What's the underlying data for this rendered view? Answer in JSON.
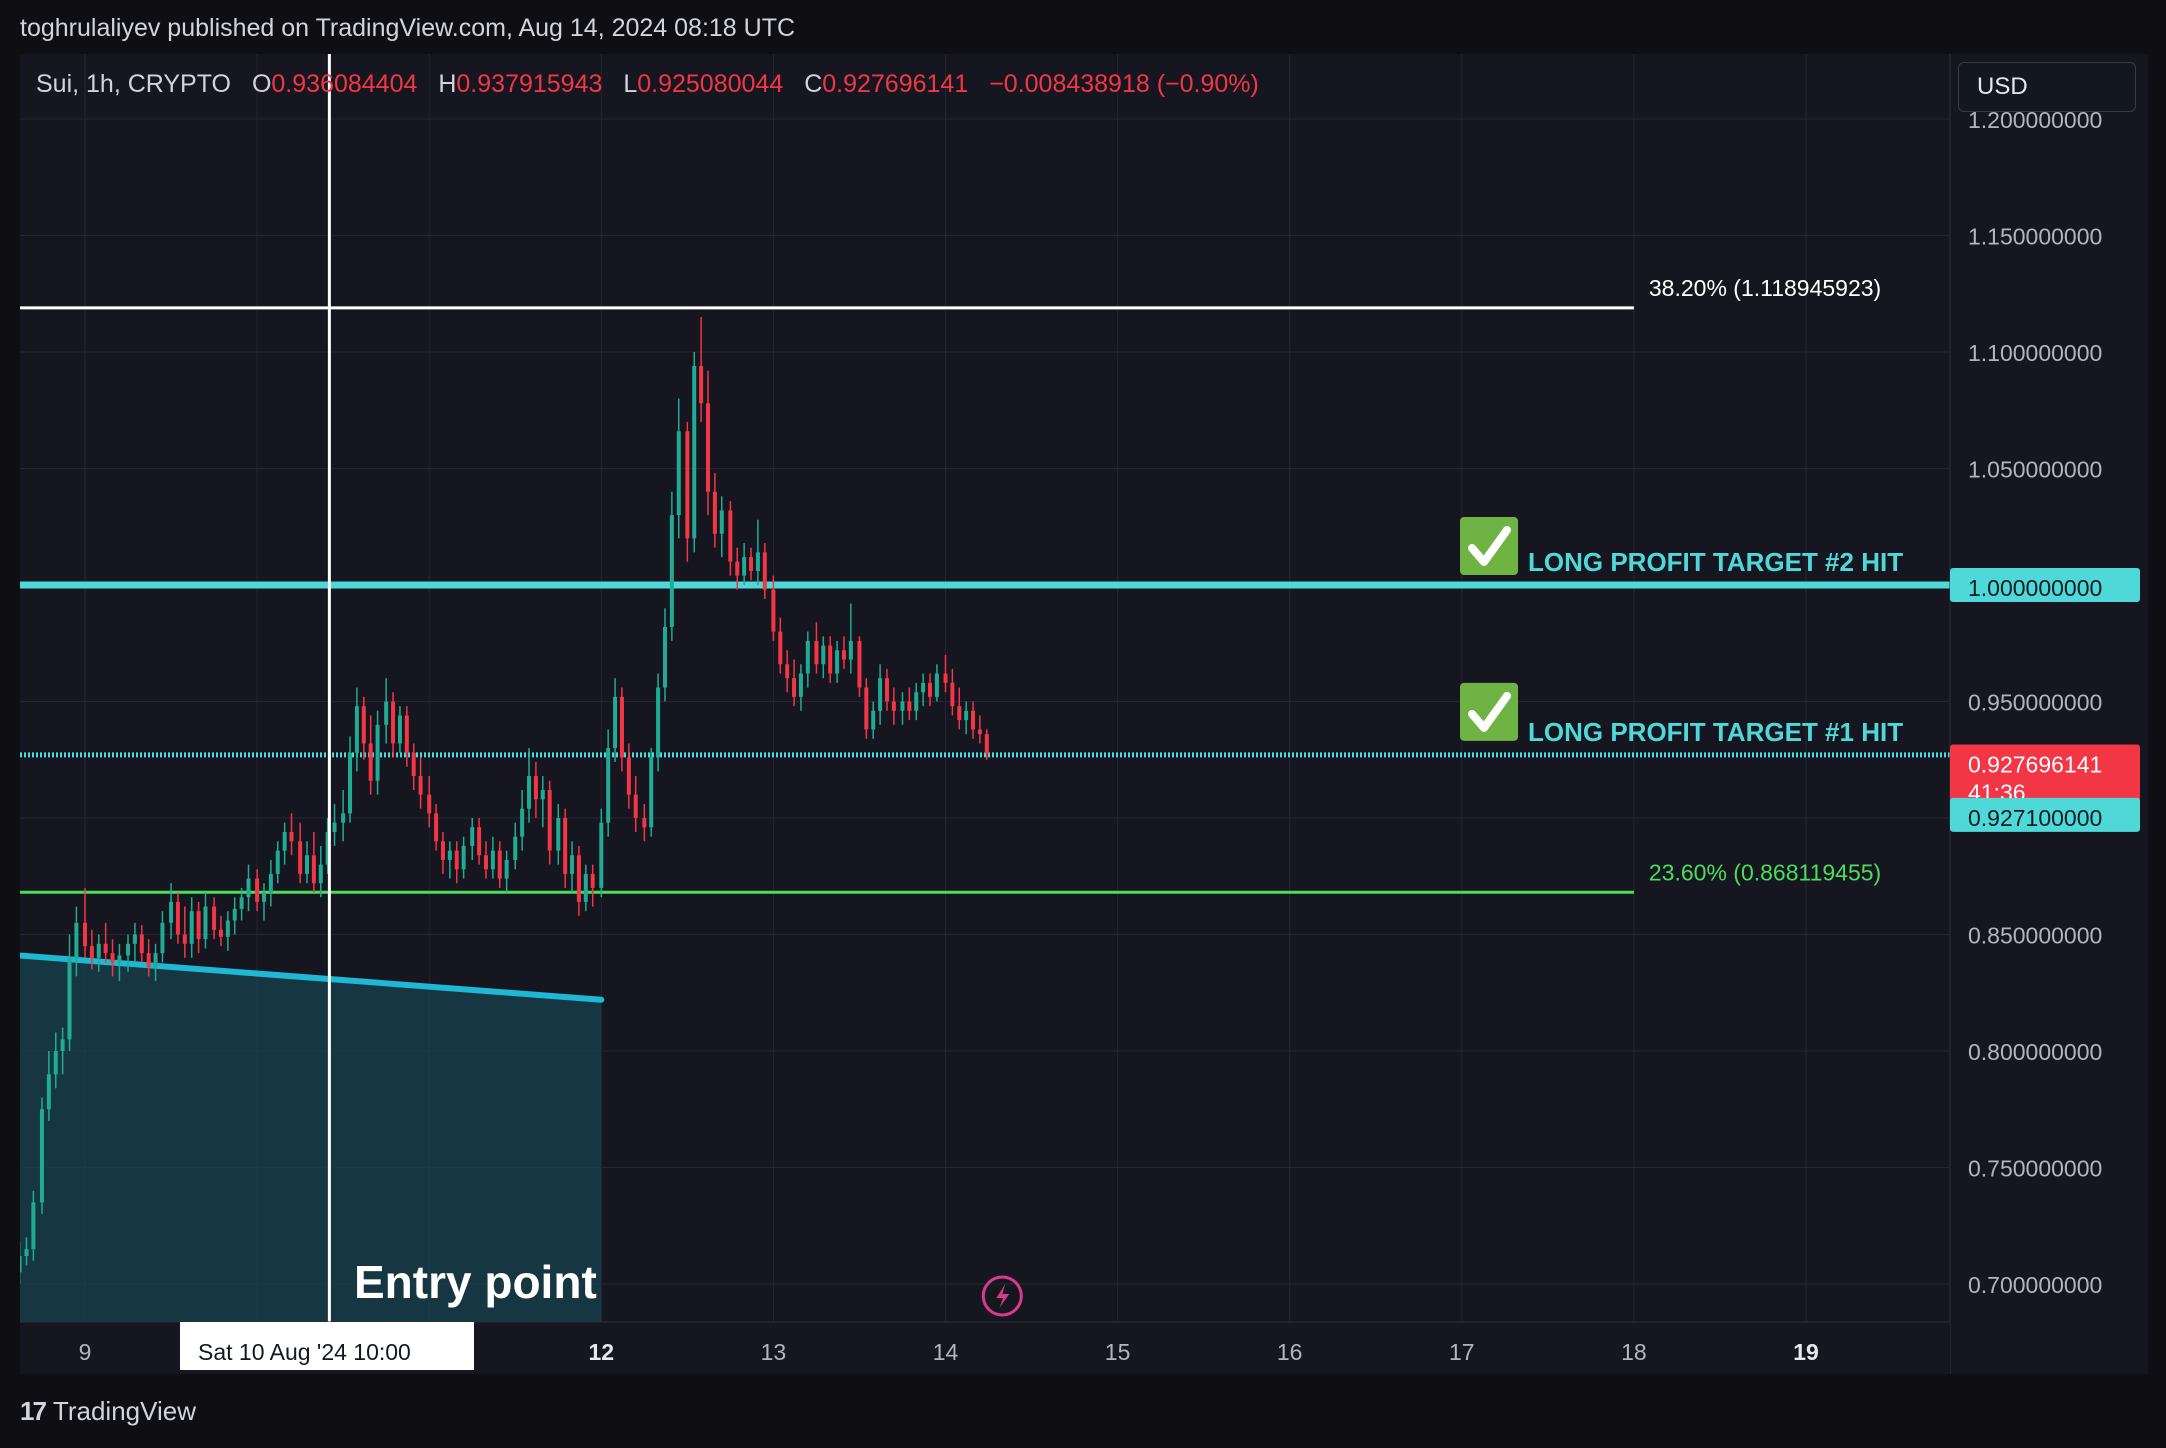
{
  "header": {
    "publisher_line": "toghrulaliyev published on TradingView.com, Aug 14, 2024 08:18 UTC"
  },
  "legend": {
    "symbol": "Sui, 1h, CRYPTO",
    "open_label": "O",
    "open": "0.936084404",
    "high_label": "H",
    "high": "0.937915943",
    "low_label": "L",
    "low": "0.925080044",
    "close_label": "C",
    "close": "0.927696141",
    "change": "−0.008438918 (−0.90%)"
  },
  "currency_button": "USD",
  "footer": {
    "brand": "TradingView",
    "logo_glyph": "17"
  },
  "colors": {
    "background": "#161620",
    "up": "#22ab94",
    "down": "#f23645",
    "target_line": "#4fd8d8",
    "fib_23": "#4ade5a",
    "fib_38": "#ffffff",
    "trendline": "#1fb8d4",
    "text": "#b2b5be"
  },
  "chart_data": {
    "type": "candlestick",
    "symbol": "Sui",
    "interval": "1h",
    "x_axis": {
      "ticks": [
        "9",
        "12",
        "13",
        "14",
        "15",
        "16",
        "17",
        "18",
        "19"
      ],
      "bold_ticks": [
        "12",
        "19"
      ],
      "crosshair_label": "Sat 10 Aug '24   10:00"
    },
    "y_axis": {
      "ticks": [
        "0.700000000",
        "0.750000000",
        "0.800000000",
        "0.850000000",
        "0.900000000",
        "0.950000000",
        "1.000000000",
        "1.050000000",
        "1.100000000",
        "1.150000000",
        "1.200000000"
      ],
      "ylim": [
        0.68,
        1.2
      ]
    },
    "levels": [
      {
        "id": "fib-38",
        "label": "38.20% (1.118945923)",
        "value": 1.118945923,
        "color": "#ffffff"
      },
      {
        "id": "fib-23",
        "label": "23.60% (0.868119455)",
        "value": 0.868119455,
        "color": "#4ade5a"
      },
      {
        "id": "target-2",
        "label": "LONG PROFIT TARGET #2 HIT",
        "value": 1.0,
        "price_tag": "1.000000000",
        "color": "#4fd8d8",
        "icon": "check-mark-icon"
      },
      {
        "id": "target-1",
        "label": "LONG PROFIT TARGET #1 HIT",
        "value": 0.9271,
        "price_tag": "0.927100000",
        "color": "#4fd8d8",
        "icon": "check-mark-icon"
      }
    ],
    "last_price": {
      "value": 0.927696141,
      "label": "0.927696141",
      "countdown": "41:36"
    },
    "annotation_entry": "Entry point",
    "trendline": {
      "x_start": 8.62,
      "y_start": 0.841,
      "x_end": 12.0,
      "y_end": 0.822
    },
    "entry_time_x": 10.42,
    "candles": [
      {
        "t": 8.62,
        "o": 0.705,
        "h": 0.718,
        "l": 0.7,
        "c": 0.712
      },
      {
        "t": 8.66,
        "o": 0.712,
        "h": 0.72,
        "l": 0.708,
        "c": 0.715
      },
      {
        "t": 8.7,
        "o": 0.715,
        "h": 0.74,
        "l": 0.71,
        "c": 0.735
      },
      {
        "t": 8.75,
        "o": 0.735,
        "h": 0.78,
        "l": 0.73,
        "c": 0.775
      },
      {
        "t": 8.79,
        "o": 0.775,
        "h": 0.8,
        "l": 0.77,
        "c": 0.79
      },
      {
        "t": 8.83,
        "o": 0.79,
        "h": 0.808,
        "l": 0.784,
        "c": 0.8
      },
      {
        "t": 8.87,
        "o": 0.8,
        "h": 0.81,
        "l": 0.79,
        "c": 0.805
      },
      {
        "t": 8.91,
        "o": 0.805,
        "h": 0.85,
        "l": 0.8,
        "c": 0.84
      },
      {
        "t": 8.95,
        "o": 0.84,
        "h": 0.862,
        "l": 0.832,
        "c": 0.855
      },
      {
        "t": 9.0,
        "o": 0.855,
        "h": 0.87,
        "l": 0.84,
        "c": 0.845
      },
      {
        "t": 9.04,
        "o": 0.845,
        "h": 0.852,
        "l": 0.835,
        "c": 0.84
      },
      {
        "t": 9.08,
        "o": 0.84,
        "h": 0.85,
        "l": 0.834,
        "c": 0.846
      },
      {
        "t": 9.12,
        "o": 0.846,
        "h": 0.855,
        "l": 0.838,
        "c": 0.842
      },
      {
        "t": 9.16,
        "o": 0.842,
        "h": 0.848,
        "l": 0.832,
        "c": 0.838
      },
      {
        "t": 9.2,
        "o": 0.838,
        "h": 0.846,
        "l": 0.83,
        "c": 0.841
      },
      {
        "t": 9.25,
        "o": 0.841,
        "h": 0.85,
        "l": 0.834,
        "c": 0.846
      },
      {
        "t": 9.29,
        "o": 0.846,
        "h": 0.855,
        "l": 0.838,
        "c": 0.85
      },
      {
        "t": 9.33,
        "o": 0.85,
        "h": 0.854,
        "l": 0.838,
        "c": 0.842
      },
      {
        "t": 9.37,
        "o": 0.842,
        "h": 0.848,
        "l": 0.832,
        "c": 0.836
      },
      {
        "t": 9.41,
        "o": 0.836,
        "h": 0.846,
        "l": 0.83,
        "c": 0.842
      },
      {
        "t": 9.45,
        "o": 0.842,
        "h": 0.86,
        "l": 0.838,
        "c": 0.855
      },
      {
        "t": 9.5,
        "o": 0.855,
        "h": 0.872,
        "l": 0.848,
        "c": 0.864
      },
      {
        "t": 9.54,
        "o": 0.864,
        "h": 0.868,
        "l": 0.846,
        "c": 0.85
      },
      {
        "t": 9.58,
        "o": 0.85,
        "h": 0.862,
        "l": 0.84,
        "c": 0.846
      },
      {
        "t": 9.62,
        "o": 0.846,
        "h": 0.866,
        "l": 0.84,
        "c": 0.86
      },
      {
        "t": 9.66,
        "o": 0.86,
        "h": 0.864,
        "l": 0.842,
        "c": 0.848
      },
      {
        "t": 9.7,
        "o": 0.848,
        "h": 0.868,
        "l": 0.844,
        "c": 0.862
      },
      {
        "t": 9.75,
        "o": 0.862,
        "h": 0.866,
        "l": 0.848,
        "c": 0.852
      },
      {
        "t": 9.79,
        "o": 0.852,
        "h": 0.858,
        "l": 0.845,
        "c": 0.849
      },
      {
        "t": 9.83,
        "o": 0.849,
        "h": 0.86,
        "l": 0.843,
        "c": 0.856
      },
      {
        "t": 9.87,
        "o": 0.856,
        "h": 0.866,
        "l": 0.85,
        "c": 0.861
      },
      {
        "t": 9.91,
        "o": 0.861,
        "h": 0.87,
        "l": 0.856,
        "c": 0.866
      },
      {
        "t": 9.95,
        "o": 0.866,
        "h": 0.88,
        "l": 0.86,
        "c": 0.874
      },
      {
        "t": 10.0,
        "o": 0.874,
        "h": 0.878,
        "l": 0.86,
        "c": 0.864
      },
      {
        "t": 10.04,
        "o": 0.864,
        "h": 0.872,
        "l": 0.856,
        "c": 0.868
      },
      {
        "t": 10.08,
        "o": 0.868,
        "h": 0.882,
        "l": 0.862,
        "c": 0.876
      },
      {
        "t": 10.12,
        "o": 0.876,
        "h": 0.89,
        "l": 0.872,
        "c": 0.886
      },
      {
        "t": 10.16,
        "o": 0.886,
        "h": 0.898,
        "l": 0.88,
        "c": 0.894
      },
      {
        "t": 10.2,
        "o": 0.894,
        "h": 0.902,
        "l": 0.884,
        "c": 0.89
      },
      {
        "t": 10.25,
        "o": 0.89,
        "h": 0.898,
        "l": 0.872,
        "c": 0.876
      },
      {
        "t": 10.29,
        "o": 0.876,
        "h": 0.89,
        "l": 0.872,
        "c": 0.884
      },
      {
        "t": 10.33,
        "o": 0.884,
        "h": 0.894,
        "l": 0.868,
        "c": 0.872
      },
      {
        "t": 10.37,
        "o": 0.872,
        "h": 0.888,
        "l": 0.866,
        "c": 0.88
      },
      {
        "t": 10.41,
        "o": 0.88,
        "h": 0.9,
        "l": 0.876,
        "c": 0.894
      },
      {
        "t": 10.45,
        "o": 0.894,
        "h": 0.906,
        "l": 0.888,
        "c": 0.898
      },
      {
        "t": 10.5,
        "o": 0.898,
        "h": 0.912,
        "l": 0.89,
        "c": 0.902
      },
      {
        "t": 10.54,
        "o": 0.902,
        "h": 0.935,
        "l": 0.898,
        "c": 0.928
      },
      {
        "t": 10.58,
        "o": 0.928,
        "h": 0.956,
        "l": 0.92,
        "c": 0.948
      },
      {
        "t": 10.62,
        "o": 0.948,
        "h": 0.952,
        "l": 0.925,
        "c": 0.932
      },
      {
        "t": 10.66,
        "o": 0.932,
        "h": 0.944,
        "l": 0.91,
        "c": 0.916
      },
      {
        "t": 10.7,
        "o": 0.916,
        "h": 0.946,
        "l": 0.91,
        "c": 0.94
      },
      {
        "t": 10.75,
        "o": 0.94,
        "h": 0.96,
        "l": 0.932,
        "c": 0.95
      },
      {
        "t": 10.79,
        "o": 0.95,
        "h": 0.954,
        "l": 0.926,
        "c": 0.932
      },
      {
        "t": 10.83,
        "o": 0.932,
        "h": 0.948,
        "l": 0.928,
        "c": 0.944
      },
      {
        "t": 10.87,
        "o": 0.944,
        "h": 0.948,
        "l": 0.922,
        "c": 0.928
      },
      {
        "t": 10.91,
        "o": 0.928,
        "h": 0.932,
        "l": 0.912,
        "c": 0.918
      },
      {
        "t": 10.95,
        "o": 0.918,
        "h": 0.926,
        "l": 0.904,
        "c": 0.91
      },
      {
        "t": 11.0,
        "o": 0.91,
        "h": 0.918,
        "l": 0.896,
        "c": 0.902
      },
      {
        "t": 11.04,
        "o": 0.902,
        "h": 0.906,
        "l": 0.886,
        "c": 0.89
      },
      {
        "t": 11.08,
        "o": 0.89,
        "h": 0.894,
        "l": 0.876,
        "c": 0.882
      },
      {
        "t": 11.12,
        "o": 0.882,
        "h": 0.89,
        "l": 0.874,
        "c": 0.886
      },
      {
        "t": 11.16,
        "o": 0.886,
        "h": 0.89,
        "l": 0.872,
        "c": 0.878
      },
      {
        "t": 11.2,
        "o": 0.878,
        "h": 0.892,
        "l": 0.874,
        "c": 0.888
      },
      {
        "t": 11.25,
        "o": 0.888,
        "h": 0.9,
        "l": 0.882,
        "c": 0.896
      },
      {
        "t": 11.29,
        "o": 0.896,
        "h": 0.9,
        "l": 0.88,
        "c": 0.884
      },
      {
        "t": 11.33,
        "o": 0.884,
        "h": 0.89,
        "l": 0.874,
        "c": 0.878
      },
      {
        "t": 11.37,
        "o": 0.878,
        "h": 0.892,
        "l": 0.874,
        "c": 0.886
      },
      {
        "t": 11.41,
        "o": 0.886,
        "h": 0.89,
        "l": 0.87,
        "c": 0.874
      },
      {
        "t": 11.45,
        "o": 0.874,
        "h": 0.886,
        "l": 0.868,
        "c": 0.882
      },
      {
        "t": 11.5,
        "o": 0.882,
        "h": 0.898,
        "l": 0.878,
        "c": 0.892
      },
      {
        "t": 11.54,
        "o": 0.892,
        "h": 0.912,
        "l": 0.886,
        "c": 0.904
      },
      {
        "t": 11.58,
        "o": 0.904,
        "h": 0.93,
        "l": 0.898,
        "c": 0.918
      },
      {
        "t": 11.62,
        "o": 0.918,
        "h": 0.924,
        "l": 0.9,
        "c": 0.908
      },
      {
        "t": 11.66,
        "o": 0.908,
        "h": 0.918,
        "l": 0.896,
        "c": 0.912
      },
      {
        "t": 11.7,
        "o": 0.912,
        "h": 0.916,
        "l": 0.88,
        "c": 0.886
      },
      {
        "t": 11.75,
        "o": 0.886,
        "h": 0.906,
        "l": 0.88,
        "c": 0.9
      },
      {
        "t": 11.79,
        "o": 0.9,
        "h": 0.904,
        "l": 0.87,
        "c": 0.876
      },
      {
        "t": 11.83,
        "o": 0.876,
        "h": 0.89,
        "l": 0.868,
        "c": 0.884
      },
      {
        "t": 11.87,
        "o": 0.884,
        "h": 0.888,
        "l": 0.858,
        "c": 0.864
      },
      {
        "t": 11.91,
        "o": 0.864,
        "h": 0.88,
        "l": 0.86,
        "c": 0.876
      },
      {
        "t": 11.95,
        "o": 0.876,
        "h": 0.88,
        "l": 0.862,
        "c": 0.87
      },
      {
        "t": 12.0,
        "o": 0.87,
        "h": 0.904,
        "l": 0.866,
        "c": 0.898
      },
      {
        "t": 12.04,
        "o": 0.898,
        "h": 0.938,
        "l": 0.892,
        "c": 0.93
      },
      {
        "t": 12.08,
        "o": 0.93,
        "h": 0.96,
        "l": 0.924,
        "c": 0.952
      },
      {
        "t": 12.12,
        "o": 0.952,
        "h": 0.956,
        "l": 0.92,
        "c": 0.926
      },
      {
        "t": 12.16,
        "o": 0.926,
        "h": 0.932,
        "l": 0.904,
        "c": 0.91
      },
      {
        "t": 12.2,
        "o": 0.91,
        "h": 0.918,
        "l": 0.894,
        "c": 0.9
      },
      {
        "t": 12.25,
        "o": 0.9,
        "h": 0.906,
        "l": 0.89,
        "c": 0.896
      },
      {
        "t": 12.29,
        "o": 0.896,
        "h": 0.93,
        "l": 0.892,
        "c": 0.926
      },
      {
        "t": 12.33,
        "o": 0.926,
        "h": 0.962,
        "l": 0.92,
        "c": 0.956
      },
      {
        "t": 12.37,
        "o": 0.956,
        "h": 0.99,
        "l": 0.95,
        "c": 0.982
      },
      {
        "t": 12.41,
        "o": 0.982,
        "h": 1.04,
        "l": 0.976,
        "c": 1.03
      },
      {
        "t": 12.45,
        "o": 1.03,
        "h": 1.08,
        "l": 1.02,
        "c": 1.066
      },
      {
        "t": 12.5,
        "o": 1.066,
        "h": 1.07,
        "l": 1.01,
        "c": 1.02
      },
      {
        "t": 12.54,
        "o": 1.02,
        "h": 1.1,
        "l": 1.014,
        "c": 1.094
      },
      {
        "t": 12.58,
        "o": 1.094,
        "h": 1.115,
        "l": 1.07,
        "c": 1.078
      },
      {
        "t": 12.62,
        "o": 1.078,
        "h": 1.092,
        "l": 1.03,
        "c": 1.04
      },
      {
        "t": 12.66,
        "o": 1.04,
        "h": 1.048,
        "l": 1.016,
        "c": 1.022
      },
      {
        "t": 12.7,
        "o": 1.022,
        "h": 1.038,
        "l": 1.012,
        "c": 1.032
      },
      {
        "t": 12.75,
        "o": 1.032,
        "h": 1.036,
        "l": 1.004,
        "c": 1.01
      },
      {
        "t": 12.79,
        "o": 1.01,
        "h": 1.016,
        "l": 0.998,
        "c": 1.004
      },
      {
        "t": 12.83,
        "o": 1.004,
        "h": 1.018,
        "l": 1.0,
        "c": 1.012
      },
      {
        "t": 12.87,
        "o": 1.012,
        "h": 1.016,
        "l": 1.002,
        "c": 1.006
      },
      {
        "t": 12.91,
        "o": 1.006,
        "h": 1.028,
        "l": 1.0,
        "c": 1.014
      },
      {
        "t": 12.95,
        "o": 1.014,
        "h": 1.018,
        "l": 0.994,
        "c": 0.998
      },
      {
        "t": 13.0,
        "o": 0.998,
        "h": 1.004,
        "l": 0.976,
        "c": 0.98
      },
      {
        "t": 13.04,
        "o": 0.98,
        "h": 0.986,
        "l": 0.962,
        "c": 0.966
      },
      {
        "t": 13.08,
        "o": 0.966,
        "h": 0.972,
        "l": 0.954,
        "c": 0.96
      },
      {
        "t": 13.12,
        "o": 0.96,
        "h": 0.968,
        "l": 0.948,
        "c": 0.952
      },
      {
        "t": 13.16,
        "o": 0.952,
        "h": 0.966,
        "l": 0.946,
        "c": 0.962
      },
      {
        "t": 13.2,
        "o": 0.962,
        "h": 0.98,
        "l": 0.956,
        "c": 0.976
      },
      {
        "t": 13.25,
        "o": 0.976,
        "h": 0.984,
        "l": 0.962,
        "c": 0.966
      },
      {
        "t": 13.29,
        "o": 0.966,
        "h": 0.978,
        "l": 0.96,
        "c": 0.974
      },
      {
        "t": 13.33,
        "o": 0.974,
        "h": 0.978,
        "l": 0.958,
        "c": 0.962
      },
      {
        "t": 13.37,
        "o": 0.962,
        "h": 0.976,
        "l": 0.958,
        "c": 0.972
      },
      {
        "t": 13.41,
        "o": 0.972,
        "h": 0.978,
        "l": 0.964,
        "c": 0.968
      },
      {
        "t": 13.45,
        "o": 0.968,
        "h": 0.992,
        "l": 0.962,
        "c": 0.976
      },
      {
        "t": 13.5,
        "o": 0.976,
        "h": 0.978,
        "l": 0.952,
        "c": 0.956
      },
      {
        "t": 13.54,
        "o": 0.956,
        "h": 0.96,
        "l": 0.934,
        "c": 0.938
      },
      {
        "t": 13.58,
        "o": 0.938,
        "h": 0.95,
        "l": 0.934,
        "c": 0.946
      },
      {
        "t": 13.62,
        "o": 0.946,
        "h": 0.966,
        "l": 0.94,
        "c": 0.96
      },
      {
        "t": 13.66,
        "o": 0.96,
        "h": 0.964,
        "l": 0.946,
        "c": 0.95
      },
      {
        "t": 13.7,
        "o": 0.95,
        "h": 0.956,
        "l": 0.94,
        "c": 0.946
      },
      {
        "t": 13.75,
        "o": 0.946,
        "h": 0.954,
        "l": 0.94,
        "c": 0.95
      },
      {
        "t": 13.79,
        "o": 0.95,
        "h": 0.956,
        "l": 0.942,
        "c": 0.946
      },
      {
        "t": 13.83,
        "o": 0.946,
        "h": 0.958,
        "l": 0.942,
        "c": 0.954
      },
      {
        "t": 13.87,
        "o": 0.954,
        "h": 0.962,
        "l": 0.948,
        "c": 0.958
      },
      {
        "t": 13.91,
        "o": 0.958,
        "h": 0.962,
        "l": 0.948,
        "c": 0.952
      },
      {
        "t": 13.95,
        "o": 0.952,
        "h": 0.966,
        "l": 0.95,
        "c": 0.962
      },
      {
        "t": 14.0,
        "o": 0.962,
        "h": 0.97,
        "l": 0.954,
        "c": 0.958
      },
      {
        "t": 14.04,
        "o": 0.958,
        "h": 0.964,
        "l": 0.944,
        "c": 0.948
      },
      {
        "t": 14.08,
        "o": 0.948,
        "h": 0.956,
        "l": 0.938,
        "c": 0.942
      },
      {
        "t": 14.12,
        "o": 0.942,
        "h": 0.95,
        "l": 0.936,
        "c": 0.946
      },
      {
        "t": 14.16,
        "o": 0.946,
        "h": 0.95,
        "l": 0.934,
        "c": 0.938
      },
      {
        "t": 14.2,
        "o": 0.938,
        "h": 0.944,
        "l": 0.932,
        "c": 0.936
      },
      {
        "t": 14.24,
        "o": 0.936,
        "h": 0.938,
        "l": 0.925,
        "c": 0.9277
      }
    ]
  }
}
